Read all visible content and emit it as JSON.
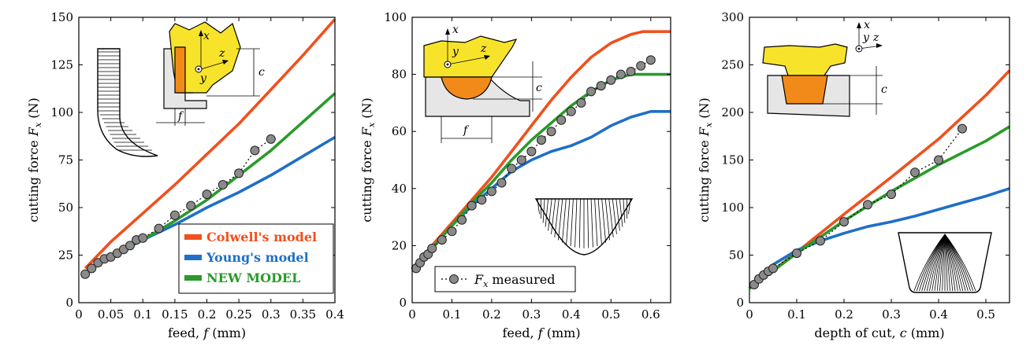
{
  "colors": {
    "colwell": "#f0501e",
    "young": "#1f6fc8",
    "new_model": "#2a9a2a",
    "measured_marker": "#8a8a8a"
  },
  "chart_data": [
    {
      "type": "line",
      "xlabel": "feed, f (mm)",
      "ylabel": "cutting force F_x (N)",
      "xlim": [
        0,
        0.4
      ],
      "ylim": [
        0,
        150
      ],
      "xticks": [
        0,
        0.05,
        0.1,
        0.15,
        0.2,
        0.25,
        0.3,
        0.35,
        0.4
      ],
      "xtick_labels": [
        "0",
        "0.05",
        "0.1",
        "0.15",
        "0.2",
        "0.25",
        "0.3",
        "0.35",
        "0.4"
      ],
      "yticks": [
        0,
        25,
        50,
        75,
        100,
        125,
        150
      ],
      "ytick_labels": [
        "0",
        "25",
        "50",
        "75",
        "100",
        "125",
        "150"
      ],
      "legend": {
        "placement": "bottom-right",
        "entries": [
          "Colwell's model",
          "Young's model",
          "NEW MODEL"
        ]
      },
      "series": [
        {
          "name": "Colwell's model",
          "color": "#f0501e",
          "x": [
            0.01,
            0.05,
            0.1,
            0.15,
            0.2,
            0.25,
            0.3,
            0.35,
            0.4
          ],
          "y": [
            18,
            32,
            47,
            62,
            78,
            94,
            112,
            130,
            149
          ]
        },
        {
          "name": "Young's model",
          "color": "#1f6fc8",
          "x": [
            0.01,
            0.05,
            0.1,
            0.15,
            0.2,
            0.25,
            0.3,
            0.35,
            0.4
          ],
          "y": [
            16,
            24,
            33,
            41,
            50,
            58,
            67,
            77,
            87
          ]
        },
        {
          "name": "NEW MODEL",
          "color": "#2a9a2a",
          "x": [
            0.01,
            0.05,
            0.1,
            0.15,
            0.2,
            0.25,
            0.3,
            0.35,
            0.4
          ],
          "y": [
            16,
            25,
            33,
            43,
            54,
            67,
            80,
            95,
            110
          ]
        },
        {
          "name": "F_x measured",
          "marker": "circle",
          "x": [
            0.01,
            0.02,
            0.03,
            0.04,
            0.05,
            0.06,
            0.07,
            0.08,
            0.09,
            0.1,
            0.125,
            0.15,
            0.175,
            0.2,
            0.225,
            0.25,
            0.275,
            0.3
          ],
          "y": [
            15,
            18,
            21,
            23,
            24,
            26,
            28,
            30,
            33,
            34,
            39,
            46,
            51,
            57,
            62,
            68,
            80,
            86
          ]
        }
      ]
    },
    {
      "type": "line",
      "xlabel": "feed, f (mm)",
      "ylabel": "cutting force F_x (N)",
      "xlim": [
        0,
        0.65
      ],
      "ylim": [
        0,
        100
      ],
      "xticks": [
        0,
        0.1,
        0.2,
        0.3,
        0.4,
        0.5,
        0.6
      ],
      "xtick_labels": [
        "0",
        "0.1",
        "0.2",
        "0.3",
        "0.4",
        "0.5",
        "0.6"
      ],
      "yticks": [
        0,
        20,
        40,
        60,
        80,
        100
      ],
      "ytick_labels": [
        "0",
        "20",
        "40",
        "60",
        "80",
        "100"
      ],
      "legend": {
        "placement": "bottom-left",
        "entries": [
          "F_x measured"
        ]
      },
      "series": [
        {
          "name": "Colwell's model",
          "color": "#f0501e",
          "x": [
            0,
            0.05,
            0.1,
            0.15,
            0.2,
            0.25,
            0.3,
            0.35,
            0.4,
            0.45,
            0.5,
            0.55,
            0.58,
            0.6,
            0.65
          ],
          "y": [
            12,
            20,
            28,
            36,
            44,
            53,
            62,
            71,
            79,
            86,
            91,
            94,
            95,
            95,
            95
          ]
        },
        {
          "name": "Young's model",
          "color": "#1f6fc8",
          "x": [
            0,
            0.05,
            0.1,
            0.15,
            0.2,
            0.25,
            0.3,
            0.35,
            0.4,
            0.45,
            0.5,
            0.55,
            0.6,
            0.65
          ],
          "y": [
            12,
            19,
            27,
            34,
            40,
            46,
            50,
            53,
            55,
            58,
            62,
            65,
            67,
            67
          ]
        },
        {
          "name": "NEW MODEL",
          "color": "#2a9a2a",
          "x": [
            0,
            0.05,
            0.1,
            0.15,
            0.2,
            0.25,
            0.3,
            0.35,
            0.4,
            0.45,
            0.5,
            0.55,
            0.6,
            0.65
          ],
          "y": [
            12,
            19,
            27,
            35,
            42,
            50,
            57,
            63,
            69,
            74,
            78,
            80,
            80,
            80
          ]
        },
        {
          "name": "F_x measured",
          "marker": "circle",
          "x": [
            0.01,
            0.02,
            0.03,
            0.04,
            0.05,
            0.075,
            0.1,
            0.125,
            0.15,
            0.175,
            0.2,
            0.225,
            0.25,
            0.275,
            0.3,
            0.325,
            0.35,
            0.375,
            0.4,
            0.425,
            0.45,
            0.475,
            0.5,
            0.525,
            0.55,
            0.575,
            0.6
          ],
          "y": [
            12,
            14,
            16,
            17,
            19,
            22,
            25,
            29,
            34,
            36,
            39,
            42,
            47,
            50,
            53,
            57,
            60,
            64,
            67,
            70,
            74,
            76,
            78,
            80,
            81,
            83,
            85
          ]
        }
      ]
    },
    {
      "type": "line",
      "xlabel": "depth of cut, c (mm)",
      "ylabel": "cutting force F_x (N)",
      "xlim": [
        0,
        0.55
      ],
      "ylim": [
        0,
        300
      ],
      "xticks": [
        0,
        0.1,
        0.2,
        0.3,
        0.4,
        0.5
      ],
      "xtick_labels": [
        "0",
        "0.1",
        "0.2",
        "0.3",
        "0.4",
        "0.5"
      ],
      "yticks": [
        0,
        50,
        100,
        150,
        200,
        250,
        300
      ],
      "ytick_labels": [
        "0",
        "50",
        "100",
        "150",
        "200",
        "250",
        "300"
      ],
      "series": [
        {
          "name": "Colwell's model",
          "color": "#f0501e",
          "x": [
            0,
            0.1,
            0.2,
            0.3,
            0.4,
            0.5,
            0.55
          ],
          "y": [
            15,
            53,
            93,
            132,
            172,
            218,
            244
          ]
        },
        {
          "name": "Young's model",
          "color": "#1f6fc8",
          "x": [
            0,
            0.05,
            0.1,
            0.15,
            0.2,
            0.25,
            0.3,
            0.35,
            0.4,
            0.45,
            0.5,
            0.55
          ],
          "y": [
            15,
            40,
            55,
            65,
            73,
            80,
            85,
            91,
            98,
            105,
            112,
            120
          ]
        },
        {
          "name": "NEW MODEL",
          "color": "#2a9a2a",
          "x": [
            0,
            0.1,
            0.2,
            0.3,
            0.4,
            0.5,
            0.55
          ],
          "y": [
            15,
            52,
            86,
            117,
            145,
            170,
            185
          ]
        },
        {
          "name": "F_x measured",
          "marker": "circle",
          "x": [
            0.01,
            0.02,
            0.03,
            0.04,
            0.05,
            0.1,
            0.15,
            0.2,
            0.25,
            0.3,
            0.35,
            0.4,
            0.45
          ],
          "y": [
            19,
            25,
            29,
            33,
            36,
            52,
            65,
            85,
            103,
            114,
            137,
            150,
            183
          ]
        }
      ]
    }
  ],
  "diagrams": {
    "panel1": {
      "x_label": "x",
      "y_label": "y",
      "z_label": "z",
      "c_label": "c",
      "f_label": "f"
    },
    "panel2": {
      "x_label": "x",
      "y_label": "y",
      "z_label": "z",
      "c_label": "c",
      "f_label": "f"
    },
    "panel3": {
      "x_label": "x",
      "y_label": "y",
      "z_label": "z",
      "c_label": "c"
    }
  },
  "legend_labels": {
    "colwell": "Colwell's model",
    "young": "Young's model",
    "new_model": "NEW MODEL",
    "measured": "F_x measured"
  }
}
